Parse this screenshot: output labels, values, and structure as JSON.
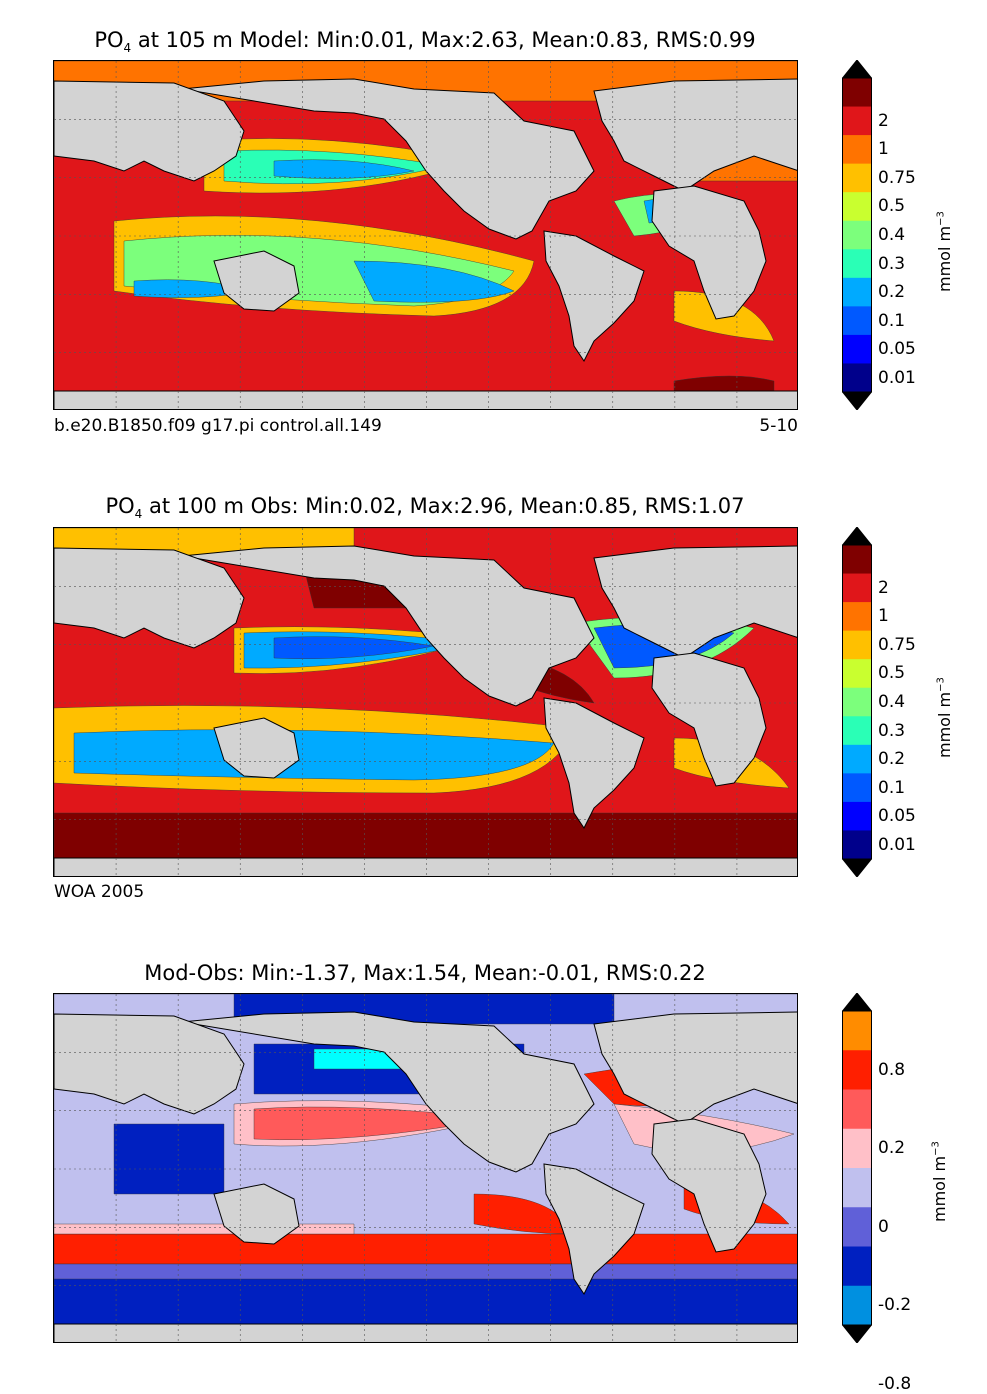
{
  "chart_data": [
    {
      "type": "heatmap",
      "title_parts": {
        "species": "PO",
        "subscript": "4",
        "rest": "at 105 m Model: Min:0.01, Max:2.63, Mean:0.83, RMS:0.99"
      },
      "caption_left": "b.e20.B1850.f09 g17.pi control.all.149",
      "caption_right": "5-10",
      "colorbar": {
        "label": "mmol m",
        "label_exp": "−3",
        "extend": "both",
        "ticks": [
          "2",
          "1",
          "0.75",
          "0.5",
          "0.4",
          "0.3",
          "0.2",
          "0.1",
          "0.05",
          "0.01"
        ],
        "colors_top_to_bottom": [
          "#000080",
          "#7f0000",
          "#e0161a",
          "#ff7300",
          "#ffc000",
          "#c9ff2f",
          "#7cff7c",
          "#2affb6",
          "#00aaff",
          "#0059ff",
          "#0000ff",
          "#00008b",
          "#000060"
        ]
      },
      "grid": true,
      "land_color": "#d3d3d3"
    },
    {
      "type": "heatmap",
      "title_parts": {
        "species": "PO",
        "subscript": "4",
        "rest": "at 100 m Obs: Min:0.02, Max:2.96, Mean:0.85, RMS:1.07"
      },
      "caption_left": "WOA 2005",
      "caption_right": "",
      "colorbar": {
        "label": "mmol m",
        "label_exp": "−3",
        "extend": "both",
        "ticks": [
          "2",
          "1",
          "0.75",
          "0.5",
          "0.4",
          "0.3",
          "0.2",
          "0.1",
          "0.05",
          "0.01"
        ],
        "colors_top_to_bottom": [
          "#000080",
          "#7f0000",
          "#e0161a",
          "#ff7300",
          "#ffc000",
          "#c9ff2f",
          "#7cff7c",
          "#2affb6",
          "#00aaff",
          "#0059ff",
          "#0000ff",
          "#00008b",
          "#000060"
        ]
      },
      "grid": true,
      "land_color": "#d3d3d3"
    },
    {
      "type": "heatmap",
      "title_parts": {
        "species": "",
        "subscript": "",
        "rest": "Mod-Obs: Min:-1.37, Max:1.54, Mean:-0.01, RMS:0.22"
      },
      "caption_left": "",
      "caption_right": "",
      "colorbar": {
        "label": "mmol m",
        "label_exp": "−3",
        "extend": "both",
        "ticks": [
          "0.8",
          "0.2",
          "0",
          "-0.2",
          "-0.8"
        ],
        "colors_top_to_bottom": [
          "#ffff00",
          "#ff8c00",
          "#ff1f00",
          "#ff5a5a",
          "#ffc0c8",
          "#c0c0ee",
          "#6060d8",
          "#0020c0",
          "#0090e0",
          "#00ffff"
        ]
      },
      "grid": true,
      "land_color": "#d3d3d3"
    }
  ]
}
